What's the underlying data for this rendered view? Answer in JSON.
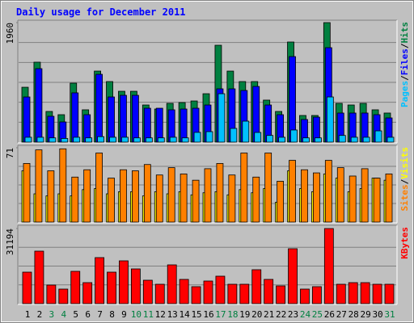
{
  "title": "Daily usage for December 2011",
  "chart_data": [
    {
      "type": "bar",
      "legend_separator": "/",
      "ylim": [
        0,
        1960
      ],
      "yticks": [
        1960
      ],
      "grid_divisions": 6,
      "series": [
        {
          "name": "Hits",
          "color": "#008040",
          "values": [
            900,
            1311,
            503,
            450,
            967,
            530,
            1165,
            993,
            834,
            834,
            609,
            543,
            636,
            649,
            675,
            794,
            1589,
            1165,
            993,
            993,
            689,
            503,
            1642,
            437,
            437,
            1960,
            636,
            609,
            636,
            530,
            477
          ]
        },
        {
          "name": "Files",
          "color": "#0000ff",
          "values": [
            741,
            1205,
            424,
            331,
            808,
            450,
            1112,
            741,
            768,
            768,
            556,
            556,
            530,
            543,
            556,
            609,
            874,
            874,
            847,
            913,
            609,
            450,
            1403,
            371,
            410,
            1549,
            477,
            477,
            477,
            450,
            397
          ]
        },
        {
          "name": "Pages",
          "color": "#00c0ff",
          "values": [
            80,
            80,
            70,
            60,
            80,
            70,
            90,
            80,
            80,
            70,
            70,
            70,
            80,
            70,
            160,
            172,
            794,
            225,
            344,
            159,
            110,
            80,
            199,
            70,
            70,
            741,
            110,
            80,
            80,
            185,
            80
          ]
        }
      ]
    },
    {
      "type": "bar",
      "legend_separator": "/",
      "ylim": [
        0,
        71
      ],
      "yticks": [
        71
      ],
      "grid_divisions": 4,
      "series": [
        {
          "name": "Visits",
          "color": "#ffff00",
          "values": [
            49,
            27,
            25,
            27,
            25,
            31,
            32,
            27,
            29,
            29,
            25,
            29,
            27,
            29,
            26,
            28,
            29,
            26,
            31,
            28,
            32,
            19,
            49,
            32,
            29,
            46,
            42,
            29,
            32,
            42,
            40
          ]
        },
        {
          "name": "Sites",
          "color": "#ff8000",
          "values": [
            56,
            69,
            49,
            70,
            43,
            50,
            66,
            42,
            50,
            49,
            55,
            45,
            52,
            46,
            40,
            51,
            56,
            45,
            66,
            43,
            66,
            39,
            59,
            50,
            47,
            59,
            52,
            44,
            51,
            42,
            46
          ]
        }
      ]
    },
    {
      "type": "bar",
      "ylim": [
        0,
        31194
      ],
      "yticks": [
        31194
      ],
      "grid_divisions": 4,
      "categories": [
        "1",
        "2",
        "3",
        "4",
        "5",
        "6",
        "7",
        "8",
        "9",
        "10",
        "11",
        "12",
        "13",
        "14",
        "15",
        "16",
        "17",
        "18",
        "19",
        "20",
        "21",
        "22",
        "23",
        "24",
        "25",
        "26",
        "27",
        "28",
        "29",
        "30",
        "31"
      ],
      "category_colors": [
        "#000000",
        "#000000",
        "#008040",
        "#008040",
        "#000000",
        "#000000",
        "#000000",
        "#000000",
        "#000000",
        "#008040",
        "#008040",
        "#000000",
        "#000000",
        "#000000",
        "#000000",
        "#000000",
        "#008040",
        "#008040",
        "#000000",
        "#000000",
        "#000000",
        "#000000",
        "#000000",
        "#008040",
        "#008040",
        "#000000",
        "#000000",
        "#000000",
        "#000000",
        "#000000",
        "#008040"
      ],
      "series": [
        {
          "name": "KBytes",
          "color": "#ff0000",
          "values": [
            13081,
            21802,
            7715,
            6038,
            13417,
            8721,
            19119,
            13081,
            17777,
            14423,
            9727,
            8050,
            16100,
            10063,
            7044,
            9392,
            11404,
            8050,
            8050,
            14088,
            10063,
            7379,
            22809,
            6038,
            7044,
            31194,
            8050,
            8721,
            8721,
            8050,
            8050
          ]
        }
      ]
    }
  ]
}
